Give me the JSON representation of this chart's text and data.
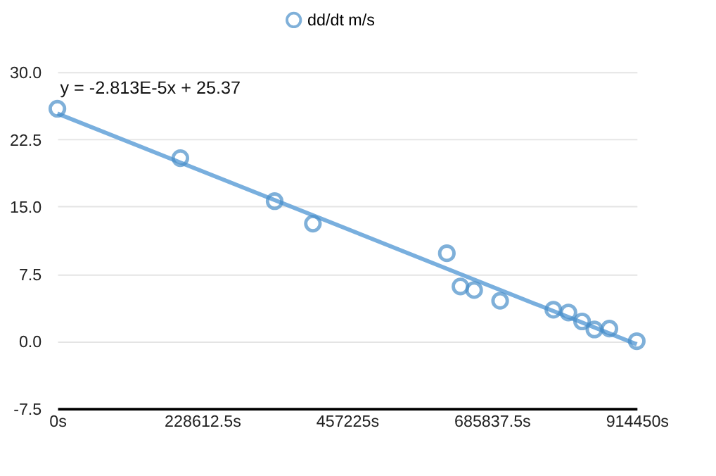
{
  "chart_data": {
    "type": "scatter",
    "annotations": [
      "y = -2.813E-5x + 25.37"
    ],
    "series": [
      {
        "name": "dd/dt m/s",
        "color": "#4a8fc9",
        "marker": "circle",
        "x": [
          0,
          194100,
          342900,
          403300,
          614700,
          636200,
          657800,
          698800,
          782900,
          806600,
          828200,
          847600,
          871300,
          914450
        ],
        "values": [
          25.9,
          20.4,
          15.6,
          13.1,
          9.8,
          6.1,
          5.7,
          4.5,
          3.5,
          3.2,
          2.2,
          1.3,
          1.4,
          0.0
        ]
      },
      {
        "type": "line",
        "color": "#6aa6da",
        "x": [
          0,
          914450
        ],
        "values": [
          25.37,
          -0.35
        ]
      }
    ],
    "xlim": [
      0,
      914450
    ],
    "xticks": [
      {
        "value": 0,
        "label": "0s"
      },
      {
        "value": 228612.5,
        "label": "228612.5s"
      },
      {
        "value": 457225,
        "label": "457225s"
      },
      {
        "value": 685837.5,
        "label": "685837.5s"
      },
      {
        "value": 914450,
        "label": "914450s"
      }
    ],
    "ylim": [
      -7.5,
      30
    ],
    "yticks": [
      {
        "value": -7.5,
        "label": "-7.5"
      },
      {
        "value": 0,
        "label": "0.0"
      },
      {
        "value": 7.5,
        "label": "7.5"
      },
      {
        "value": 15,
        "label": "15.0"
      },
      {
        "value": 22.5,
        "label": "22.5"
      },
      {
        "value": 30,
        "label": "30.0"
      }
    ],
    "grid": "y",
    "legend": "top"
  }
}
